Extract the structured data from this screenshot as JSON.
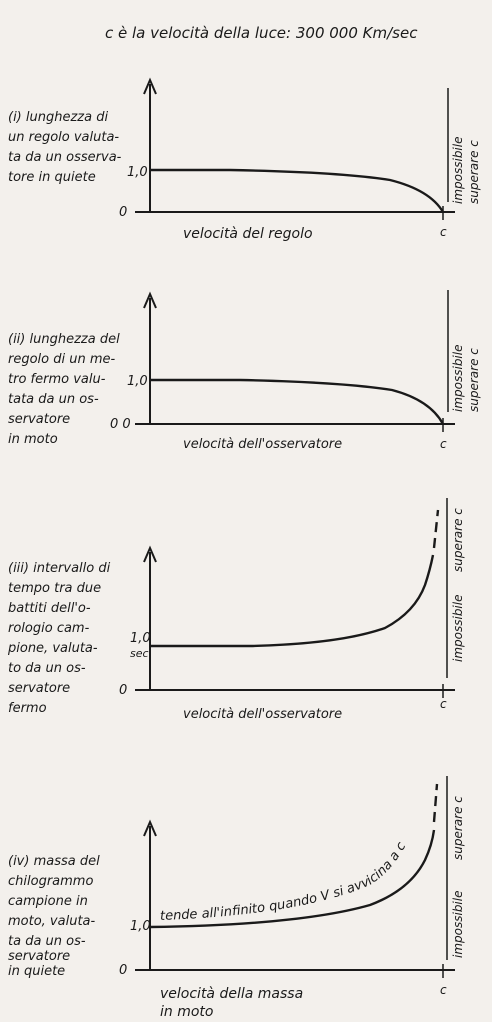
{
  "title": "c è la velocità della luce: 300 000 Km/sec",
  "side_label_1": "impossibile",
  "side_label_2": "superare c",
  "c_label": "c",
  "panels": [
    {
      "lines": [
        "(i) lunghezza di",
        "un regolo valuta-",
        "ta da un osserva-",
        "tore in quiete"
      ],
      "y_value_label": "1,0",
      "zero_label": "0",
      "x_label": "velocità del regolo",
      "curve": "decrease"
    },
    {
      "lines": [
        "(ii) lunghezza del",
        "regolo di un me-",
        "tro fermo valu-",
        "tata da un os-",
        "servatore",
        "in moto"
      ],
      "y_value_label": "1,0",
      "zero_label": "0 0",
      "x_label": "velocità dell'osservatore",
      "curve": "decrease"
    },
    {
      "lines": [
        "(iii) intervallo di",
        "tempo tra due",
        "battiti dell'o-",
        "rologio cam-",
        "pione, valuta-",
        "to da un os-",
        "servatore",
        "fermo"
      ],
      "y_value_label": "1,0",
      "y_unit_label": "sec",
      "zero_label": "0",
      "x_label": "velocità dell'osservatore",
      "curve": "increase"
    },
    {
      "lines": [
        "(iv) massa del",
        "chilogrammo",
        "campione in",
        "moto, valuta-",
        "ta da un os-",
        "servatore",
        "in quiete"
      ],
      "y_value_label": "1,0",
      "zero_label": "0",
      "x_label_1": "velocità della massa",
      "x_label_2": "in moto",
      "annotation": "tende all'infinito quando V si avvicina a c",
      "curve": "increase"
    }
  ]
}
